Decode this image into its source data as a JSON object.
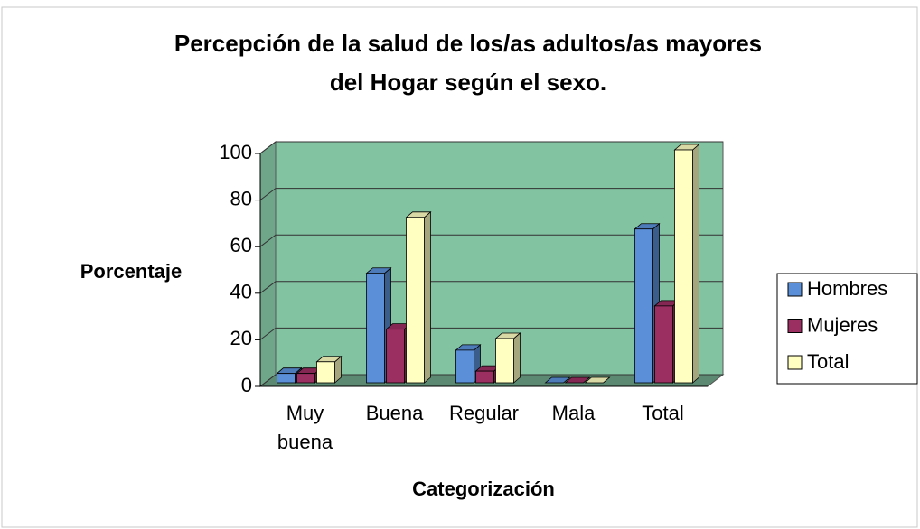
{
  "chart_data": {
    "type": "bar3d",
    "title": [
      "Percepción de la salud de los/as adultos/as mayores",
      "del Hogar según el sexo."
    ],
    "ylabel": "Porcentaje",
    "xlabel": "Categorización",
    "categories": [
      "Muy buena",
      "Buena",
      "Regular",
      "Mala",
      "Total"
    ],
    "series": [
      {
        "name": "Hombres",
        "color": "#5b8fd8",
        "values": [
          4,
          47,
          14,
          0,
          66
        ]
      },
      {
        "name": "Mujeres",
        "color": "#9b2f62",
        "values": [
          4,
          23,
          5,
          0,
          33
        ]
      },
      {
        "name": "Total",
        "color": "#ffffc2",
        "values": [
          9,
          71,
          19,
          0,
          100
        ]
      }
    ],
    "ylim": [
      0,
      100
    ],
    "yticks": [
      0,
      20,
      40,
      60,
      80,
      100
    ],
    "grid": true,
    "legend": "right",
    "wall_color": "#82c3a2"
  }
}
